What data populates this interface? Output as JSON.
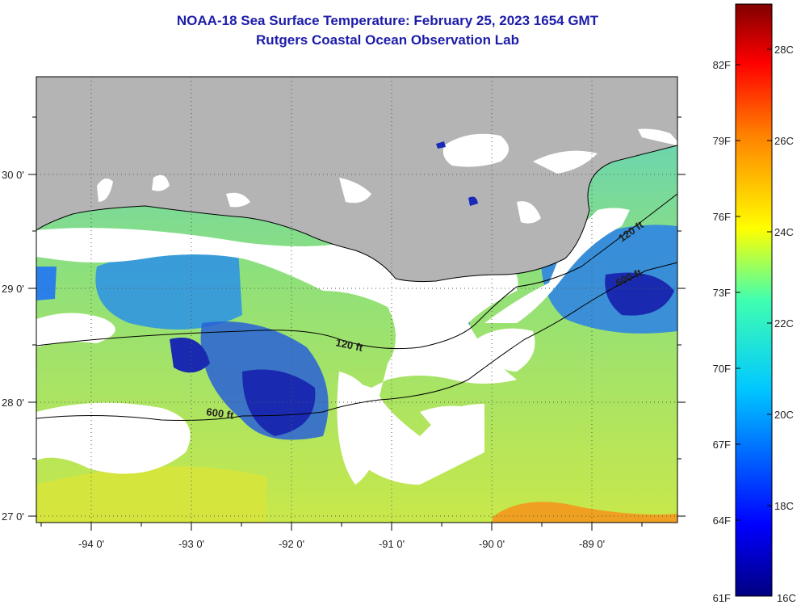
{
  "title": {
    "line1": "NOAA-18 Sea Surface Temperature:  February 25, 2023 1654 GMT",
    "line2": "Rutgers Coastal Ocean Observation Lab"
  },
  "map": {
    "lon_labels": [
      "-94 0'",
      "-93 0'",
      "-92 0'",
      "-91 0'",
      "-90 0'",
      "-89 0'"
    ],
    "lat_labels": [
      "30 0'",
      "29 0'",
      "28 0'",
      "27 0'"
    ],
    "contours": [
      "120 ft",
      "600 ft",
      "120 ft",
      "600 ft"
    ],
    "colors": {
      "land": "#b4b4b4",
      "cloud": "#ffffff",
      "water_warm": "#c8e84a",
      "water_mid": "#7ee08a",
      "water_cool": "#2aa0e8",
      "water_cold": "#1a2ab8",
      "water_hot": "#f0a020"
    }
  },
  "colorbar": {
    "f_labels": [
      "82F",
      "79F",
      "76F",
      "73F",
      "70F",
      "67F",
      "64F",
      "61F"
    ],
    "c_labels": [
      "28C",
      "26C",
      "24C",
      "22C",
      "20C",
      "18C",
      "16C"
    ]
  }
}
